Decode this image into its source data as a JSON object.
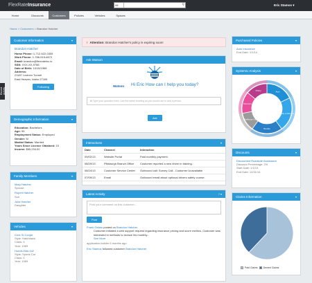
{
  "header": {
    "logo_a": "FlexRate",
    "logo_b": "Insurance",
    "search_filter": "All",
    "user_name": "Eric Stamos"
  },
  "nav": [
    {
      "label": "Home"
    },
    {
      "label": "Discounts"
    },
    {
      "label": "Customers",
      "active": true
    },
    {
      "label": "Policies"
    },
    {
      "label": "Vehicles"
    },
    {
      "label": "Spaces"
    }
  ],
  "breadcrumb": {
    "home": "Home",
    "customers": "Customers",
    "current": "Brandon Hatcher"
  },
  "side_tab": "Recent Activity",
  "customer_info": {
    "title": "Customer Information",
    "name": "Brandon Hatcher",
    "home_phone_label": "Home Phone:",
    "home_phone": "1-712-622-0305",
    "work_phone_label": "Work Phone:",
    "work_phone": "1-786-515-6672",
    "email_label": "Email:",
    "email": "brandon@flexrateinc.io",
    "ssn_label": "SSN:",
    "ssn": "XXX-XX-9786",
    "dob_label": "Date of Birth:",
    "dob": "10/15/1968",
    "address_label": "Address:",
    "address_1": "21187 Lovinen Tunnel",
    "address_2": "East Heaven, Idaho 27165",
    "follow_label": "Following"
  },
  "demographic": {
    "title": "Demographic Information",
    "rows": [
      {
        "label": "Education:",
        "value": "Bachelors"
      },
      {
        "label": "Age:",
        "value": "55"
      },
      {
        "label": "Employment Status:",
        "value": "Employed"
      },
      {
        "label": "Gender:",
        "value": "M"
      },
      {
        "label": "Marital Status:",
        "value": "Married"
      },
      {
        "label": "Years Since Licence Obtained:",
        "value": "15"
      },
      {
        "label": "Income:",
        "value": "$65,234.00"
      }
    ]
  },
  "family": {
    "title": "Family Members",
    "members": [
      {
        "name": "Mary Hatcher",
        "relation": "Spouse"
      },
      {
        "name": "Rupert Hatcher",
        "relation": "Son"
      },
      {
        "name": "Julia Hatcher",
        "relation": "Daughter"
      }
    ]
  },
  "vehicles": {
    "title": "Vehicles",
    "items": [
      {
        "name": "Civic Si Coupe",
        "style": "Style: Hatchback",
        "class": "Class: 3",
        "year": "Year: 1969"
      },
      {
        "name": "Hundt-Olds 442",
        "style": "Style: Sports Car",
        "class": "Class: 3",
        "year": "Year: 1969"
      }
    ]
  },
  "alert": {
    "prefix": "Attention:",
    "text": "Brandon Hatcher's policy is expiring soon!"
  },
  "watson": {
    "title": "Ask Watson",
    "label": "Watson",
    "greeting": "Hi Eric How can I help you today?",
    "placeholder": "Type your question here. Use the same wording as you would use to ask a person.",
    "ask_label": "Ask"
  },
  "interactions": {
    "title": "Interactions",
    "headers": [
      "Date",
      "Channel",
      "Interaction"
    ],
    "rows": [
      {
        "date": "09/02/13",
        "channel": "Website Portal",
        "interaction": "Paid monthly payment."
      },
      {
        "date": "08/29/13",
        "channel": "Pittsburgh Branch Office",
        "interaction": "Customer reported a new driver in training."
      },
      {
        "date": "08/24/13",
        "channel": "Customer Service Center",
        "interaction": "Outbound call: Survey Call - Customer Unavailable"
      },
      {
        "date": "07/09/13",
        "channel": "Email",
        "interaction": "Outbound email about optional drivers safety course."
      }
    ]
  },
  "activity": {
    "title": "Latest Activity",
    "placeholder": "Post your comment on this customer...",
    "post_label": "Post",
    "posts": [
      {
        "author": "Frank Gelato",
        "verb": "posted on",
        "target": "Brandon Hatcher",
        "text": "Customer initiated a web support request regarding insurance pricing and score metrics. Customer was interested in methods to reduce his monthly...",
        "more": "See More",
        "time": "application builder 6 months ago"
      },
      {
        "author": "Eric Stamos",
        "verb": "followed customer",
        "target": "Brandon Hatcher"
      }
    ]
  },
  "purchased": {
    "title": "Purchased Policies",
    "policy": "Auto Insurance",
    "end_date": "End Date: 1/1/14"
  },
  "analysis": {
    "title": "SystemU Analysis",
    "segments": [
      {
        "label": "Auto",
        "value": 18,
        "color": "#1f8fd6"
      },
      {
        "label": "Likely to Renew",
        "value": 22,
        "color": "#34a6ea"
      },
      {
        "label": "Bundle",
        "value": 20,
        "color": "#2a7fc7"
      },
      {
        "label": "Challenge (%)",
        "value": 12,
        "color": "#9b9b9b"
      },
      {
        "label": "Discount",
        "value": 14,
        "color": "#e84e9c"
      },
      {
        "label": "Policy",
        "value": 14,
        "color": "#b83a8b"
      }
    ]
  },
  "discounts": {
    "title": "Discounts",
    "name": "Discounted Roadside Assistance",
    "percent": "Discount Percentage: 2%",
    "start": "Start Date: 1/1/13",
    "end": "End Date: 12/31/14"
  },
  "claims": {
    "title": "Claims Information",
    "legend": [
      {
        "label": "Paid Claims",
        "color": "#a8c2d9"
      },
      {
        "label": "Denied Claims",
        "color": "#3e6d9a"
      }
    ]
  },
  "chart_data": {
    "type": "pie",
    "categories": [
      "Paid Claims",
      "Denied Claims"
    ],
    "values": [
      62,
      38
    ]
  }
}
